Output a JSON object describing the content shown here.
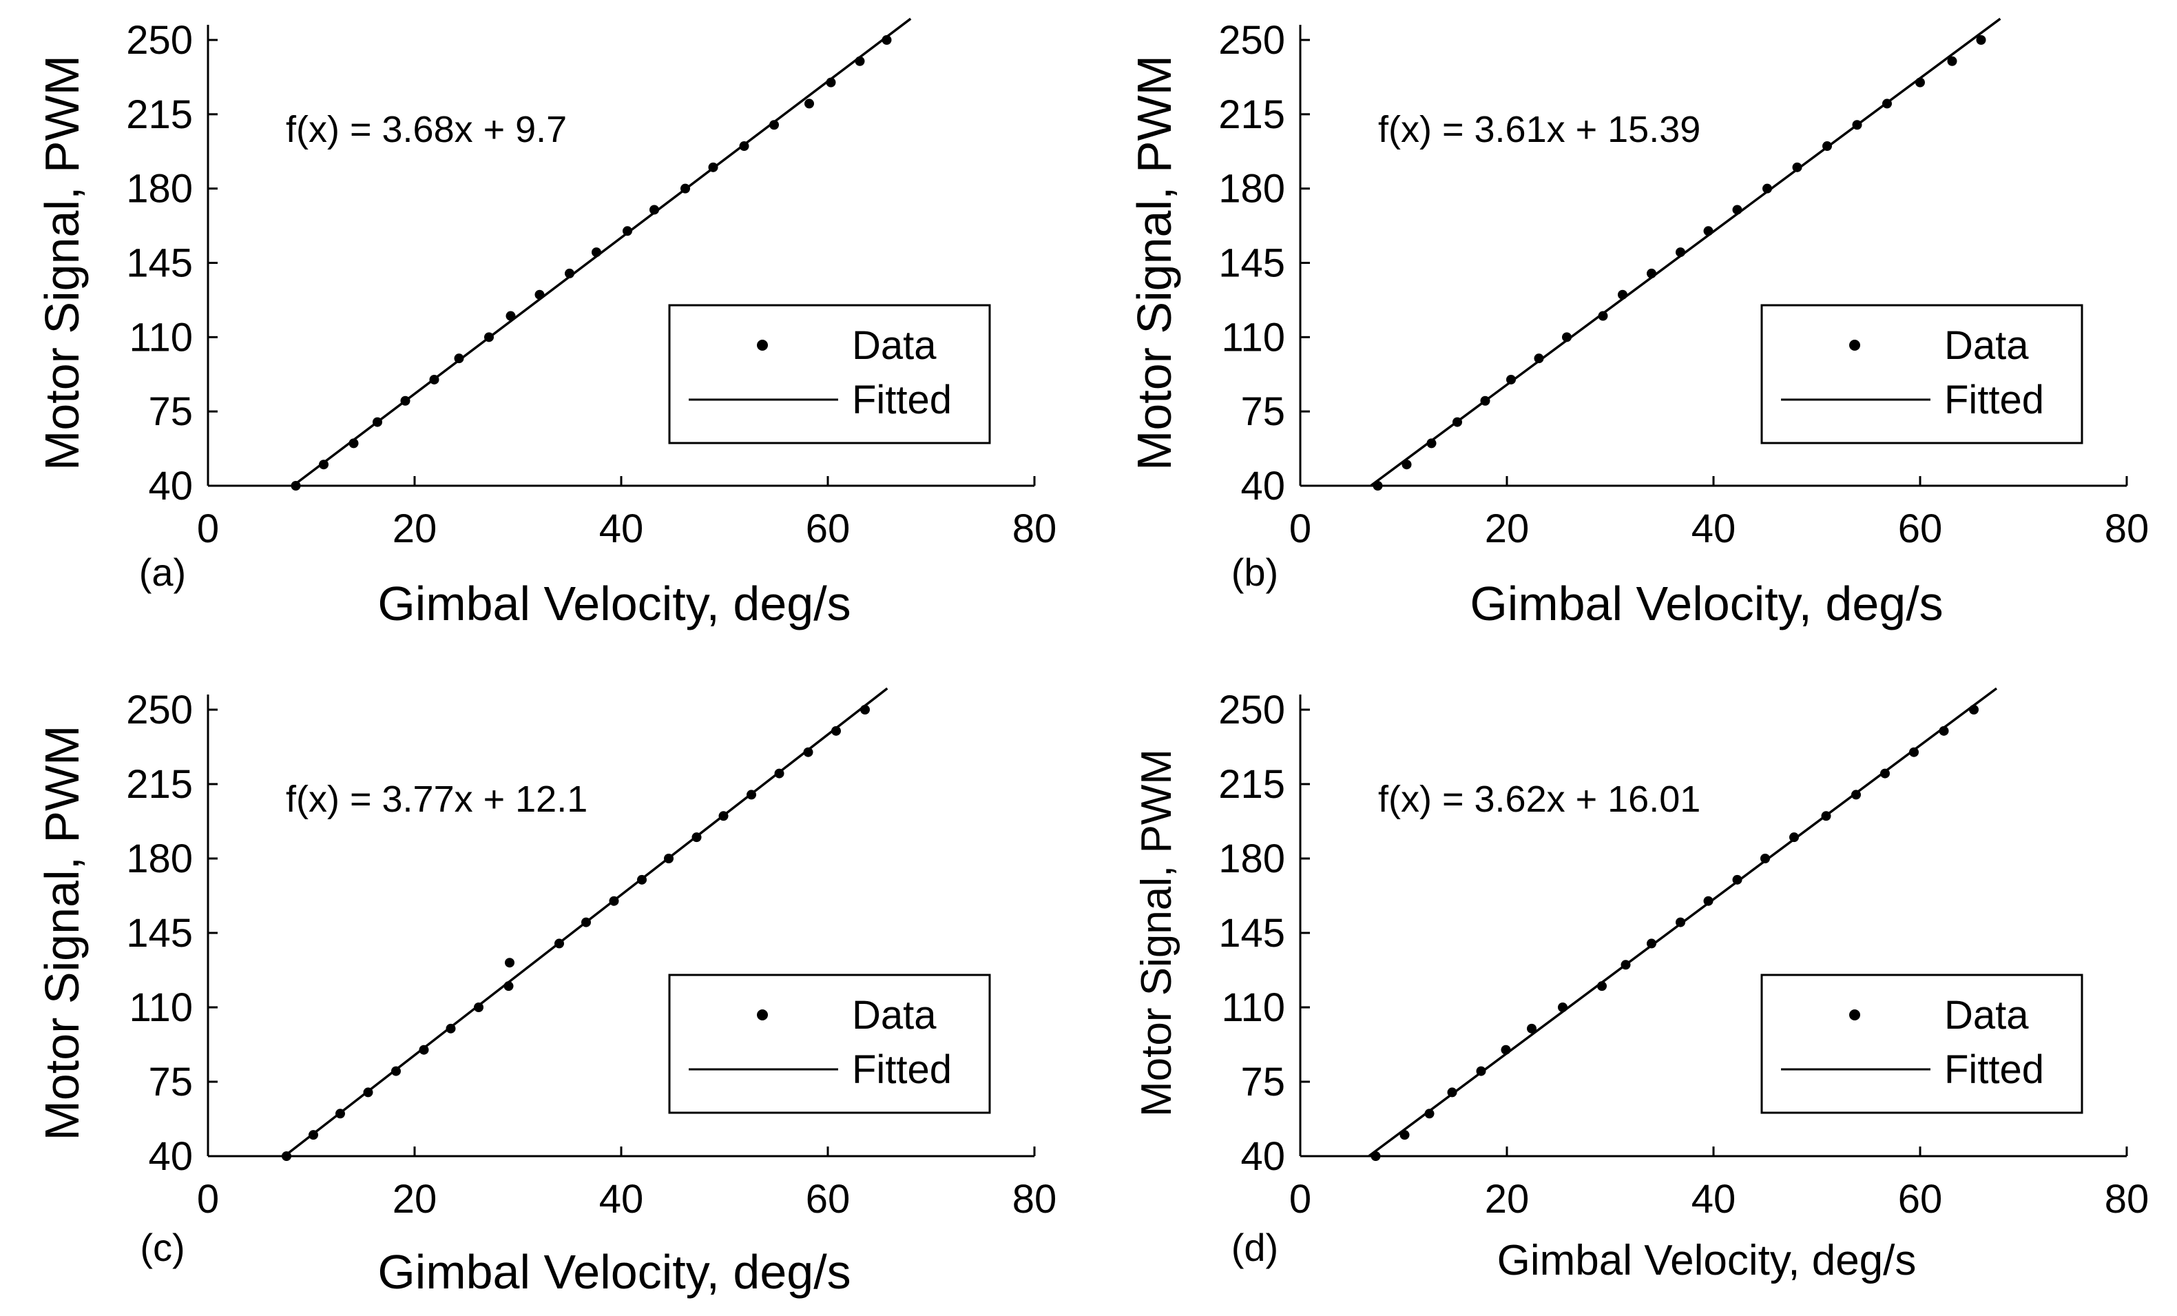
{
  "chart_data": [
    {
      "type": "scatter",
      "panel_label": "(a)",
      "xlabel": "Gimbal Velocity, deg/s",
      "ylabel": "Motor Signal, PWM",
      "xlim": [
        0,
        80
      ],
      "ylim": [
        40,
        250
      ],
      "xticks": [
        "0",
        "20",
        "40",
        "60",
        "80"
      ],
      "yticks": [
        "40",
        "75",
        "110",
        "145",
        "180",
        "215",
        "250"
      ],
      "annotation": "f(x) = 3.68x + 9.7",
      "fit": {
        "slope": 3.68,
        "intercept": 9.7
      },
      "legend": {
        "position": "bottom-right",
        "entries": [
          "Data",
          "Fitted"
        ]
      },
      "series": [
        {
          "name": "Data",
          "x": [
            8.5,
            11.2,
            14.1,
            16.4,
            19.1,
            21.9,
            24.3,
            27.2,
            29.3,
            32.1,
            35.0,
            37.6,
            40.6,
            43.2,
            46.2,
            48.9,
            51.9,
            54.8,
            58.2,
            60.3,
            63.1,
            65.7
          ],
          "y": [
            40,
            50,
            60,
            70,
            80,
            90,
            100,
            110,
            120,
            130,
            140,
            150,
            160,
            170,
            180,
            190,
            200,
            210,
            220,
            230,
            240,
            250
          ]
        }
      ]
    },
    {
      "type": "scatter",
      "panel_label": "(b)",
      "xlabel": "Gimbal Velocity, deg/s",
      "ylabel": "Motor Signal, PWM",
      "xlim": [
        0,
        80
      ],
      "ylim": [
        40,
        250
      ],
      "xticks": [
        "0",
        "20",
        "40",
        "60",
        "80"
      ],
      "yticks": [
        "40",
        "75",
        "110",
        "145",
        "180",
        "215",
        "250"
      ],
      "annotation": "f(x) = 3.61x + 15.39",
      "fit": {
        "slope": 3.61,
        "intercept": 15.39
      },
      "legend": {
        "position": "bottom-right",
        "entries": [
          "Data",
          "Fitted"
        ]
      },
      "series": [
        {
          "name": "Data",
          "x": [
            7.5,
            10.3,
            12.7,
            15.2,
            17.9,
            20.4,
            23.1,
            25.8,
            29.3,
            31.2,
            34.0,
            36.8,
            39.5,
            42.3,
            45.2,
            48.1,
            51.0,
            53.9,
            56.8,
            60.0,
            63.1,
            65.9
          ],
          "y": [
            40,
            50,
            60,
            70,
            80,
            90,
            100,
            110,
            120,
            130,
            140,
            150,
            160,
            170,
            180,
            190,
            200,
            210,
            220,
            230,
            240,
            250
          ]
        }
      ]
    },
    {
      "type": "scatter",
      "panel_label": "(c)",
      "xlabel": "Gimbal Velocity, deg/s",
      "ylabel": "Motor Signal, PWM",
      "xlim": [
        0,
        80
      ],
      "ylim": [
        40,
        250
      ],
      "xticks": [
        "0",
        "20",
        "40",
        "60",
        "80"
      ],
      "yticks": [
        "40",
        "75",
        "110",
        "145",
        "180",
        "215",
        "250"
      ],
      "annotation": "f(x) = 3.77x + 12.1",
      "fit": {
        "slope": 3.77,
        "intercept": 12.1
      },
      "legend": {
        "position": "bottom-right",
        "entries": [
          "Data",
          "Fitted"
        ]
      },
      "series": [
        {
          "name": "Data",
          "x": [
            7.6,
            10.2,
            12.8,
            15.5,
            18.2,
            20.9,
            23.5,
            26.2,
            29.1,
            29.2,
            34.0,
            36.6,
            39.3,
            42.0,
            44.6,
            47.3,
            49.9,
            52.6,
            55.3,
            58.1,
            60.8,
            63.6
          ],
          "y": [
            40,
            50,
            60,
            70,
            80,
            90,
            100,
            110,
            120,
            131,
            140,
            150,
            160,
            170,
            180,
            190,
            200,
            210,
            220,
            230,
            240,
            250
          ]
        }
      ]
    },
    {
      "type": "scatter",
      "panel_label": "(d)",
      "xlabel": "Gimbal Velocity, deg/s",
      "ylabel": "Motor Signal, PWM",
      "xlim": [
        0,
        80
      ],
      "ylim": [
        40,
        250
      ],
      "xticks": [
        "0",
        "20",
        "40",
        "60",
        "80"
      ],
      "yticks": [
        "40",
        "75",
        "110",
        "145",
        "180",
        "215",
        "250"
      ],
      "annotation": "f(x) = 3.62x + 16.01",
      "fit": {
        "slope": 3.62,
        "intercept": 16.01
      },
      "legend": {
        "position": "bottom-right",
        "entries": [
          "Data",
          "Fitted"
        ]
      },
      "series": [
        {
          "name": "Data",
          "x": [
            7.3,
            10.1,
            12.5,
            14.7,
            17.5,
            19.9,
            22.4,
            25.4,
            29.2,
            31.5,
            34.0,
            36.8,
            39.5,
            42.3,
            45.0,
            47.8,
            50.9,
            53.8,
            56.6,
            59.4,
            62.3,
            65.2
          ],
          "y": [
            40,
            50,
            60,
            70,
            80,
            90,
            100,
            110,
            120,
            130,
            140,
            150,
            160,
            170,
            180,
            190,
            200,
            210,
            220,
            230,
            240,
            250
          ]
        }
      ]
    }
  ]
}
